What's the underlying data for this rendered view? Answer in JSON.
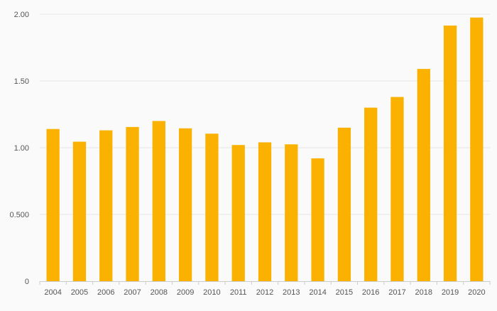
{
  "chart_data": {
    "type": "bar",
    "title": "",
    "xlabel": "",
    "ylabel": "",
    "categories": [
      "2004",
      "2005",
      "2006",
      "2007",
      "2008",
      "2009",
      "2010",
      "2011",
      "2012",
      "2013",
      "2014",
      "2015",
      "2016",
      "2017",
      "2018",
      "2019",
      "2020"
    ],
    "values": [
      1.14,
      1.045,
      1.13,
      1.155,
      1.2,
      1.145,
      1.105,
      1.02,
      1.04,
      1.025,
      0.92,
      1.15,
      1.3,
      1.38,
      1.59,
      1.915,
      1.975
    ],
    "ylim": [
      0,
      2.0
    ],
    "yticks": [
      {
        "value": 0,
        "label": "0"
      },
      {
        "value": 0.5,
        "label": "0.500"
      },
      {
        "value": 1.0,
        "label": "1.00"
      },
      {
        "value": 1.5,
        "label": "1.50"
      },
      {
        "value": 2.0,
        "label": "2.00"
      }
    ],
    "grid": true,
    "legend": "none",
    "bar_color": "#fbb100",
    "grid_color": "#e6e6e6",
    "axis_color": "#cccccc",
    "text_color": "#555555"
  }
}
